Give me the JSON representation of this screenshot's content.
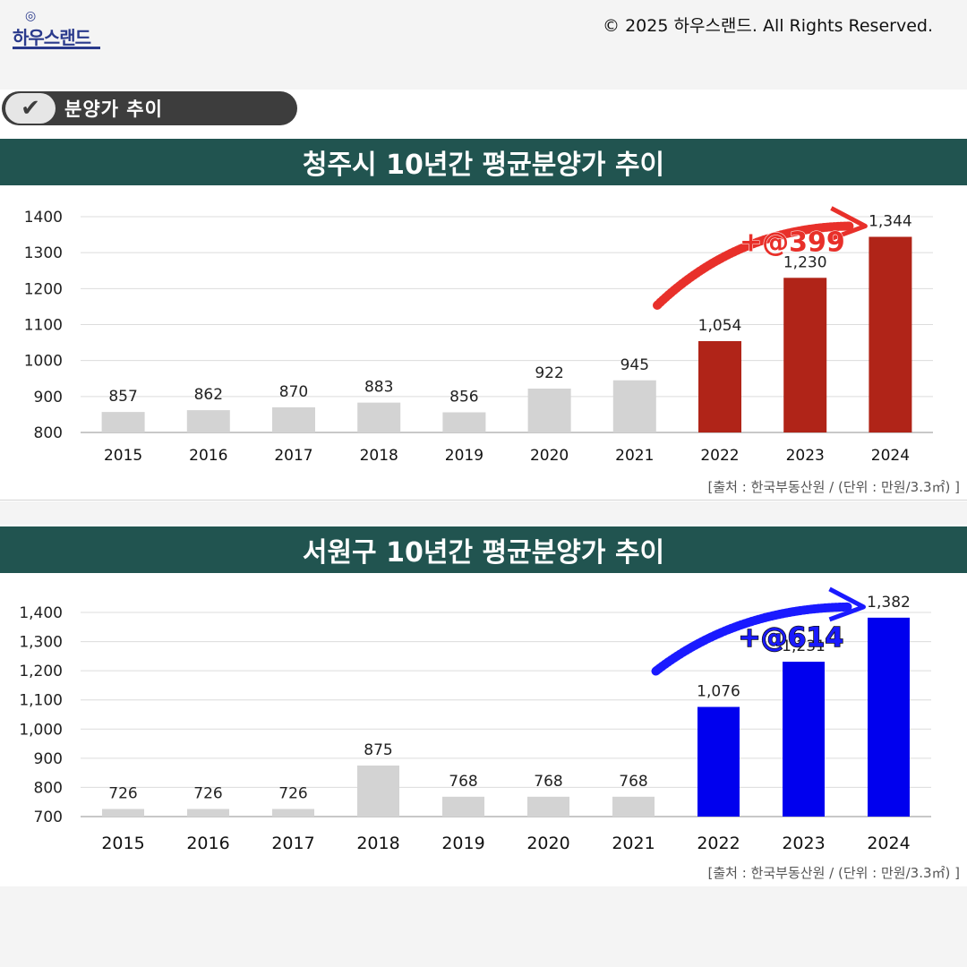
{
  "brand": {
    "logo_text": "하우스랜드"
  },
  "copyright": "© 2025 하우스랜드. All Rights Reserved.",
  "section_label": "분양가 추이",
  "colors": {
    "title_bg": "#215450",
    "bar_gray": "#d3d3d3",
    "bar_red": "#b02418",
    "bar_blue": "#0000ee",
    "annot_red": "#e8302a",
    "annot_blue": "#1a1aff"
  },
  "chart_data": [
    {
      "type": "bar",
      "title": "청주시 10년간 평균분양가 추이",
      "categories": [
        "2015",
        "2016",
        "2017",
        "2018",
        "2019",
        "2020",
        "2021",
        "2022",
        "2023",
        "2024"
      ],
      "values": [
        857,
        862,
        870,
        883,
        856,
        922,
        945,
        1054,
        1230,
        1344
      ],
      "value_labels": [
        "857",
        "862",
        "870",
        "883",
        "856",
        "922",
        "945",
        "1,054",
        "1,230",
        "1,344"
      ],
      "highlight_from_index": 7,
      "ylim": [
        800,
        1400
      ],
      "yticks": [
        800,
        900,
        1000,
        1100,
        1200,
        1300,
        1400
      ],
      "ytick_labels": [
        "800",
        "900",
        "1000",
        "1100",
        "1200",
        "1300",
        "1400"
      ],
      "annotation": "+@399",
      "source": "[출처 : 한국부동산원 / (단위 : 만원/3.3㎡) ]"
    },
    {
      "type": "bar",
      "title": "서원구 10년간 평균분양가 추이",
      "categories": [
        "2015",
        "2016",
        "2017",
        "2018",
        "2019",
        "2020",
        "2021",
        "2022",
        "2023",
        "2024"
      ],
      "values": [
        726,
        726,
        726,
        875,
        768,
        768,
        768,
        1076,
        1231,
        1382
      ],
      "value_labels": [
        "726",
        "726",
        "726",
        "875",
        "768",
        "768",
        "768",
        "1,076",
        "1,231",
        "1,382"
      ],
      "highlight_from_index": 7,
      "ylim": [
        700,
        1400
      ],
      "yticks": [
        700,
        800,
        900,
        1000,
        1100,
        1200,
        1300,
        1400
      ],
      "ytick_labels": [
        "700",
        "800",
        "900",
        "1,000",
        "1,100",
        "1,200",
        "1,300",
        "1,400"
      ],
      "annotation": "+@614",
      "source": "[출처 : 한국부동산원 / (단위 : 만원/3.3㎡) ]"
    }
  ]
}
